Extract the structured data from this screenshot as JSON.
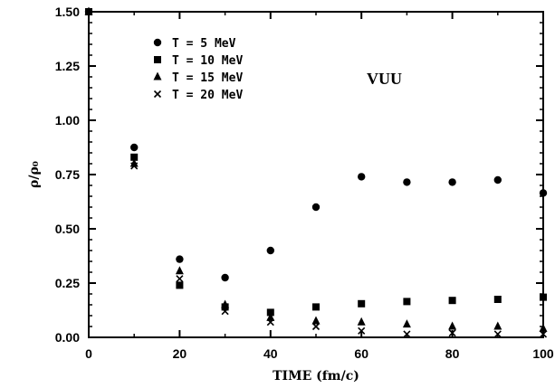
{
  "chart_data": {
    "type": "scatter",
    "xlabel": "TIME (fm/c)",
    "ylabel": "ρ/ρ₀",
    "xlim": [
      0,
      100
    ],
    "ylim": [
      0,
      1.5
    ],
    "xticks": [
      "0",
      "20",
      "40",
      "60",
      "80",
      "100"
    ],
    "yticks": [
      "0.00",
      "0.25",
      "0.50",
      "0.75",
      "1.00",
      "1.25",
      "1.50"
    ],
    "legend_placement": "top-left",
    "grid": false,
    "annotation": "VUU",
    "series": [
      {
        "name": "T = 5 MeV",
        "marker": "circle",
        "x": [
          0,
          10,
          20,
          30,
          40,
          50,
          60,
          70,
          80,
          90,
          100
        ],
        "y": [
          1.5,
          0.875,
          0.36,
          0.275,
          0.4,
          0.6,
          0.74,
          0.715,
          0.715,
          0.725,
          0.665
        ]
      },
      {
        "name": "T = 10 MeV",
        "marker": "square",
        "x": [
          0,
          10,
          20,
          30,
          40,
          50,
          60,
          70,
          80,
          90,
          100
        ],
        "y": [
          1.5,
          0.83,
          0.24,
          0.14,
          0.115,
          0.14,
          0.155,
          0.165,
          0.17,
          0.175,
          0.185
        ]
      },
      {
        "name": "T = 15 MeV",
        "marker": "triangle",
        "x": [
          0,
          10,
          20,
          30,
          40,
          50,
          60,
          70,
          80,
          90,
          100
        ],
        "y": [
          1.5,
          0.8,
          0.305,
          0.15,
          0.09,
          0.075,
          0.07,
          0.06,
          0.05,
          0.05,
          0.04
        ]
      },
      {
        "name": "T = 20 MeV",
        "marker": "x",
        "x": [
          0,
          10,
          20,
          30,
          40,
          50,
          60,
          70,
          80,
          90,
          100
        ],
        "y": [
          1.5,
          0.79,
          0.27,
          0.12,
          0.07,
          0.05,
          0.03,
          0.015,
          0.02,
          0.015,
          0.015
        ]
      }
    ]
  }
}
